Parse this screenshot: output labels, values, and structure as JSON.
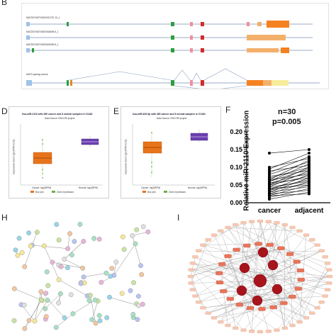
{
  "panels": {
    "b": {
      "letter": "B"
    },
    "d": {
      "letter": "D"
    },
    "e": {
      "letter": "E"
    },
    "f": {
      "letter": "F"
    },
    "h": {
      "letter": "H"
    },
    "i": {
      "letter": "I"
    }
  },
  "isoforms": [
    {
      "label": "MATZB ENST00000321757.10_1"
    },
    {
      "label": "MATZB ENST00000518695.5_1"
    },
    {
      "label": "MATZB ENST00000520969.5_1"
    }
  ],
  "splicing": {
    "label": "MATS splicing events"
  },
  "boxplot_d": {
    "title": "hsa-miR-2110 with 450 cancer and 8 normal samples in COAD",
    "subtitle": "Data Source: ENCORI project",
    "ylabel": "Expression level: log2 (RPM+0.01)",
    "groups": [
      "Cancer: log2(RPM)",
      "Normal: log2(RPM)"
    ],
    "legend": [
      "Box plot",
      "Gene expression"
    ],
    "colors": {
      "cancer": "#e8731a",
      "normal": "#6a3fb0"
    }
  },
  "boxplot_e": {
    "title": "hsa-miR-629-5p with 450 cancer and 8 normal samples in COAD",
    "subtitle": "Data Source: ENCORI project",
    "ylabel": "Expression level: log2 (RPM+0.01)",
    "groups": [
      "Cancer: log2(RPM)",
      "Normal: log2(RPM)"
    ],
    "legend": [
      "Box plot",
      "Gene expression"
    ]
  },
  "chart_data": {
    "type": "line",
    "title": "",
    "annotation": [
      "n=30",
      "p=0.005"
    ],
    "ylabel": "Relative miR-2110 Expression",
    "ylim": [
      0,
      0.2
    ],
    "yticks": [
      "0.00",
      "0.05",
      "0.10",
      "0.15",
      "0.20"
    ],
    "categories": [
      "cancer",
      "adjacent"
    ],
    "pairs": [
      [
        0.01,
        0.03
      ],
      [
        0.015,
        0.04
      ],
      [
        0.02,
        0.025
      ],
      [
        0.02,
        0.05
      ],
      [
        0.025,
        0.035
      ],
      [
        0.025,
        0.06
      ],
      [
        0.03,
        0.045
      ],
      [
        0.03,
        0.07
      ],
      [
        0.035,
        0.055
      ],
      [
        0.035,
        0.08
      ],
      [
        0.04,
        0.05
      ],
      [
        0.04,
        0.065
      ],
      [
        0.045,
        0.09
      ],
      [
        0.045,
        0.06
      ],
      [
        0.05,
        0.075
      ],
      [
        0.05,
        0.1
      ],
      [
        0.055,
        0.07
      ],
      [
        0.055,
        0.085
      ],
      [
        0.06,
        0.095
      ],
      [
        0.06,
        0.11
      ],
      [
        0.065,
        0.08
      ],
      [
        0.065,
        0.12
      ],
      [
        0.07,
        0.1
      ],
      [
        0.075,
        0.09
      ],
      [
        0.08,
        0.115
      ],
      [
        0.085,
        0.13
      ],
      [
        0.09,
        0.105
      ],
      [
        0.095,
        0.14
      ],
      [
        0.1,
        0.125
      ],
      [
        0.14,
        0.15
      ]
    ]
  }
}
